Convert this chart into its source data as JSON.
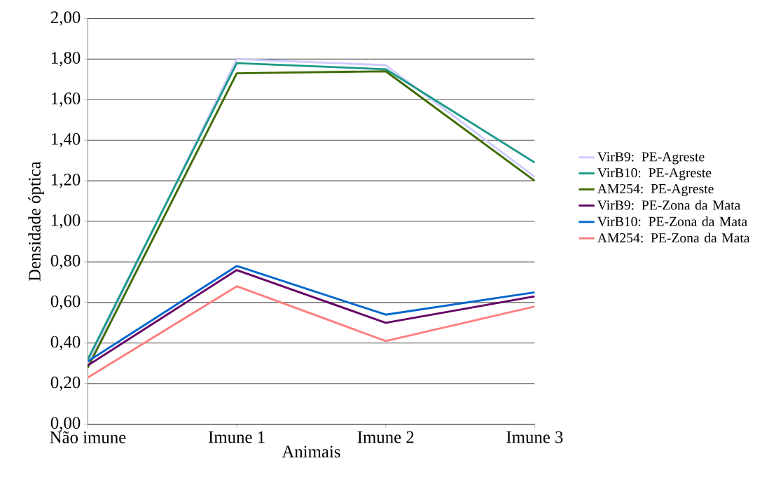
{
  "chart_data": {
    "type": "line",
    "xlabel": "Animais",
    "ylabel": "Densidade óptica",
    "categories": [
      "Não imune",
      "Imune 1",
      "Imune 2",
      "Imune 3"
    ],
    "ylim": [
      0,
      2
    ],
    "yticks": [
      {
        "value": 0,
        "label": "0,00"
      },
      {
        "value": 0.2,
        "label": "0,20"
      },
      {
        "value": 0.4,
        "label": "0,40"
      },
      {
        "value": 0.6,
        "label": "0,60"
      },
      {
        "value": 0.8,
        "label": "0,80"
      },
      {
        "value": 1.0,
        "label": "1,00"
      },
      {
        "value": 1.2,
        "label": "1,20"
      },
      {
        "value": 1.4,
        "label": "1,40"
      },
      {
        "value": 1.6,
        "label": "1,60"
      },
      {
        "value": 1.8,
        "label": "1,80"
      },
      {
        "value": 2.0,
        "label": "2,00"
      }
    ],
    "grid": "y",
    "legend": "right",
    "marker": "none",
    "line_style": "solid",
    "series": [
      {
        "name": "VirB9: PE-Agreste",
        "color": "#ccccff",
        "values": [
          0.3,
          1.8,
          1.77,
          1.22
        ]
      },
      {
        "name": "VirB10: PE-Agreste",
        "color": "#1a9988",
        "values": [
          0.32,
          1.78,
          1.75,
          1.29
        ]
      },
      {
        "name": "AM254: PE-Agreste",
        "color": "#3f6b00",
        "values": [
          0.28,
          1.73,
          1.74,
          1.2
        ]
      },
      {
        "name": "VirB9: PE-Zona da Mata",
        "color": "#660066",
        "values": [
          0.29,
          0.76,
          0.5,
          0.63
        ]
      },
      {
        "name": "VirB10: PE-Zona da Mata",
        "color": "#0066cc",
        "values": [
          0.31,
          0.78,
          0.54,
          0.65
        ]
      },
      {
        "name": "AM254: PE-Zona da Mata",
        "color": "#ff7f7f",
        "values": [
          0.23,
          0.68,
          0.41,
          0.58
        ]
      }
    ]
  }
}
